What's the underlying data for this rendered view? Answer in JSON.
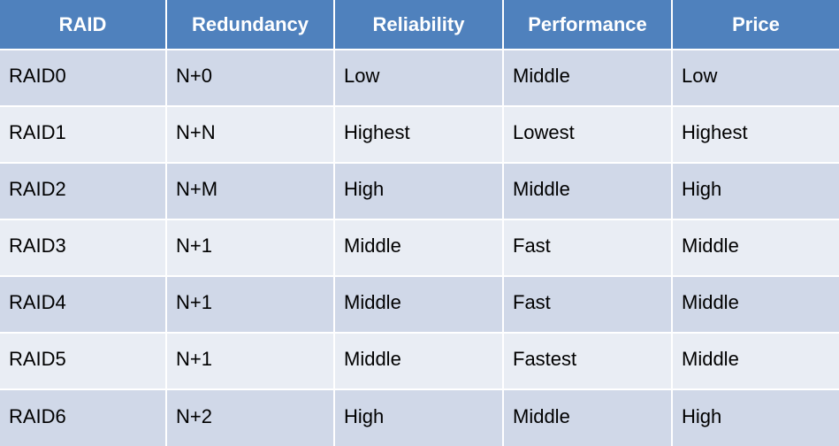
{
  "table": {
    "headers": [
      "RAID",
      "Redundancy",
      "Reliability",
      "Performance",
      "Price"
    ],
    "rows": [
      [
        "RAID0",
        "N+0",
        "Low",
        "Middle",
        "Low"
      ],
      [
        "RAID1",
        "N+N",
        "Highest",
        "Lowest",
        "Highest"
      ],
      [
        "RAID2",
        "N+M",
        "High",
        "Middle",
        "High"
      ],
      [
        "RAID3",
        "N+1",
        "Middle",
        "Fast",
        "Middle"
      ],
      [
        "RAID4",
        "N+1",
        "Middle",
        "Fast",
        "Middle"
      ],
      [
        "RAID5",
        "N+1",
        "Middle",
        "Fastest",
        "Middle"
      ],
      [
        "RAID6",
        "N+2",
        "High",
        "Middle",
        "High"
      ]
    ]
  },
  "colors": {
    "header_bg": "#4f81bd",
    "header_text": "#ffffff",
    "row_odd_bg": "#d0d8e8",
    "row_even_bg": "#e9edf4",
    "cell_text": "#000000",
    "grid_line": "#ffffff"
  }
}
